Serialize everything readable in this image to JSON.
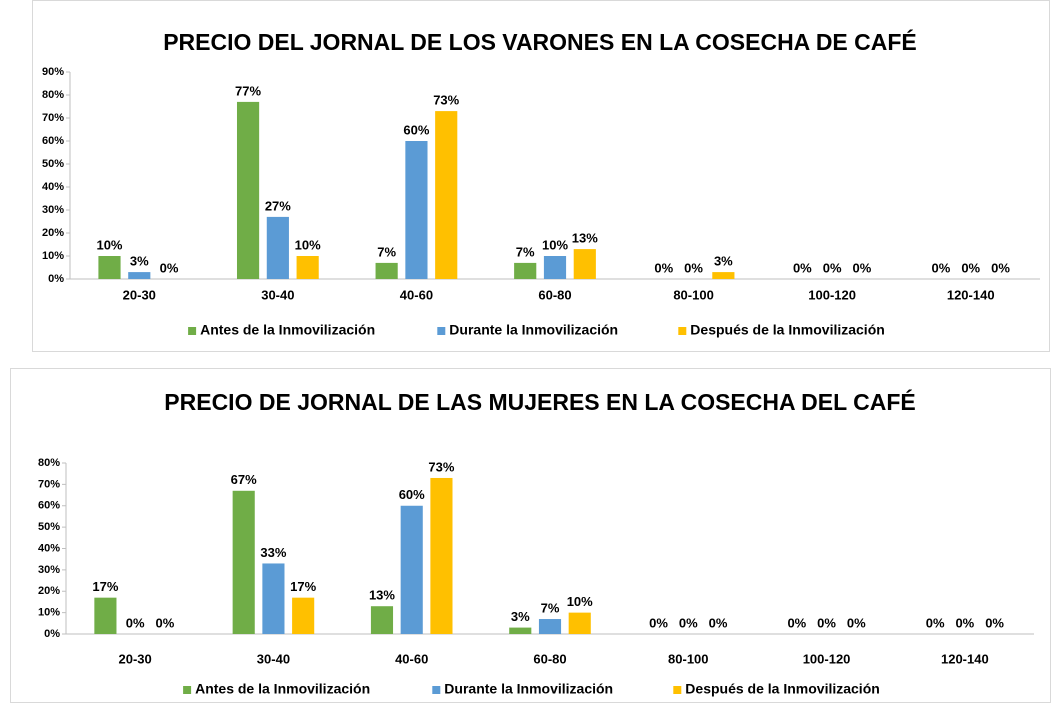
{
  "chart_data": [
    {
      "type": "bar",
      "title": "PRECIO DEL JORNAL DE LOS VARONES EN LA COSECHA DE CAFÉ",
      "categories": [
        "20-30",
        "30-40",
        "40-60",
        "60-80",
        "80-100",
        "100-120",
        "120-140"
      ],
      "series": [
        {
          "name": "Antes de la Inmovilización",
          "color": "#70ad47",
          "values": [
            10,
            77,
            7,
            7,
            0,
            0,
            0
          ],
          "value_labels": [
            "10%",
            "77%",
            "7%",
            "7%",
            "0%",
            "0%",
            "0%"
          ]
        },
        {
          "name": "Durante la Inmovilización",
          "color": "#5b9bd5",
          "values": [
            3,
            27,
            60,
            10,
            0,
            0,
            0
          ],
          "value_labels": [
            "3%",
            "27%",
            "60%",
            "10%",
            "0%",
            "0%",
            "0%"
          ]
        },
        {
          "name": "Después de la Inmovilización",
          "color": "#ffc000",
          "values": [
            0,
            10,
            73,
            13,
            3,
            0,
            0
          ],
          "value_labels": [
            "0%",
            "10%",
            "73%",
            "13%",
            "3%",
            "0%",
            "0%"
          ]
        }
      ],
      "ylim": [
        0,
        90
      ],
      "yticks": [
        {
          "value": 0,
          "label": "0%"
        },
        {
          "value": 10,
          "label": "10%"
        },
        {
          "value": 20,
          "label": "20%"
        },
        {
          "value": 30,
          "label": "30%"
        },
        {
          "value": 40,
          "label": "40%"
        },
        {
          "value": 50,
          "label": "50%"
        },
        {
          "value": 60,
          "label": "60%"
        },
        {
          "value": 70,
          "label": "70%"
        },
        {
          "value": 80,
          "label": "80%"
        },
        {
          "value": 90,
          "label": "90%"
        }
      ],
      "legend": "bottom"
    },
    {
      "type": "bar",
      "title": "PRECIO DE JORNAL DE LAS MUJERES EN LA COSECHA DEL CAFÉ",
      "categories": [
        "20-30",
        "30-40",
        "40-60",
        "60-80",
        "80-100",
        "100-120",
        "120-140"
      ],
      "series": [
        {
          "name": "Antes de la Inmovilización",
          "color": "#70ad47",
          "values": [
            17,
            67,
            13,
            3,
            0,
            0,
            0
          ],
          "value_labels": [
            "17%",
            "67%",
            "13%",
            "3%",
            "0%",
            "0%",
            "0%"
          ]
        },
        {
          "name": "Durante la Inmovilización",
          "color": "#5b9bd5",
          "values": [
            0,
            33,
            60,
            7,
            0,
            0,
            0
          ],
          "value_labels": [
            "0%",
            "33%",
            "60%",
            "7%",
            "0%",
            "0%",
            "0%"
          ]
        },
        {
          "name": "Después de la Inmovilización",
          "color": "#ffc000",
          "values": [
            0,
            17,
            73,
            10,
            0,
            0,
            0
          ],
          "value_labels": [
            "0%",
            "17%",
            "73%",
            "10%",
            "0%",
            "0%",
            "0%"
          ]
        }
      ],
      "ylim": [
        0,
        80
      ],
      "yticks": [
        {
          "value": 0,
          "label": "0%"
        },
        {
          "value": 10,
          "label": "10%"
        },
        {
          "value": 20,
          "label": "20%"
        },
        {
          "value": 30,
          "label": "30%"
        },
        {
          "value": 40,
          "label": "40%"
        },
        {
          "value": 50,
          "label": "50%"
        },
        {
          "value": 60,
          "label": "60%"
        },
        {
          "value": 70,
          "label": "70%"
        },
        {
          "value": 80,
          "label": "80%"
        }
      ],
      "legend": "bottom"
    }
  ]
}
